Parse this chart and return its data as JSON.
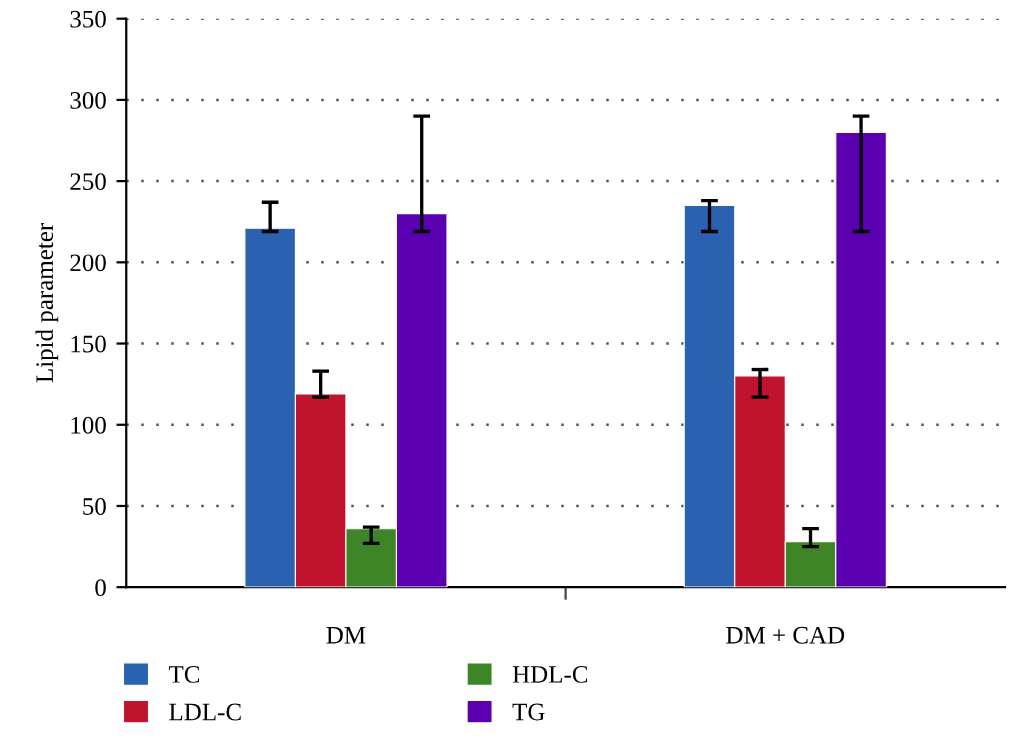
{
  "chart_data": {
    "type": "bar",
    "ylabel": "Lipid parameter",
    "categories": [
      "DM",
      "DM + CAD"
    ],
    "series": [
      {
        "name": "TC",
        "color": "#2a62b0",
        "values": [
          221,
          235
        ],
        "errors": [
          [
            219,
            237
          ],
          [
            219,
            238
          ]
        ]
      },
      {
        "name": "LDL-C",
        "color": "#c1122e",
        "values": [
          119,
          130
        ],
        "errors": [
          [
            117,
            133
          ],
          [
            117,
            134
          ]
        ]
      },
      {
        "name": "HDL-C",
        "color": "#3d8526",
        "values": [
          36,
          28
        ],
        "errors": [
          [
            27,
            37
          ],
          [
            25,
            36
          ]
        ]
      },
      {
        "name": "TG",
        "color": "#5a00b0",
        "values": [
          230,
          280
        ],
        "errors": [
          [
            219,
            290
          ],
          [
            219,
            290
          ]
        ]
      }
    ],
    "ylim": [
      0,
      350
    ],
    "yticks": [
      0,
      50,
      100,
      150,
      200,
      250,
      300,
      350
    ],
    "grid": "y",
    "legend": "bottom"
  }
}
